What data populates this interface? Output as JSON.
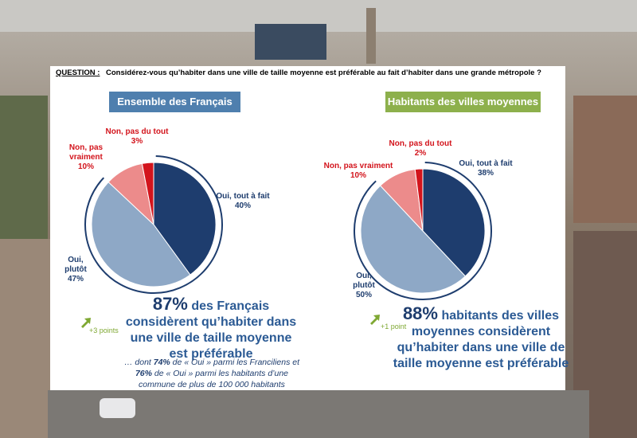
{
  "question": {
    "label": "QUESTION :",
    "text": "Considérez-vous qu’habiter dans une ville de taille moyenne est préférable au fait d’habiter dans une grande métropole ?"
  },
  "chart_data": [
    {
      "type": "pie",
      "title": "Ensemble des Français",
      "title_color": "#4f7fae",
      "categories": [
        "Oui, tout à fait",
        "Oui, plutôt",
        "Non, pas vraiment",
        "Non, pas du tout"
      ],
      "values": [
        40,
        47,
        10,
        3
      ],
      "value_labels": [
        "40%",
        "47%",
        "10%",
        "3%"
      ],
      "colors": [
        "#1e3d6e",
        "#8ea8c6",
        "#ec8b8b",
        "#d3141c"
      ],
      "highlight": "87%",
      "statement": "des Français considèrent qu’habiter dans une ville de taille moyenne est préférable",
      "delta": "+3 points",
      "footnote": [
        "… dont ",
        "74%",
        " de « Oui » parmi les Franciliens et ",
        "76%",
        " de « Oui » parmi les habitants d’une commune de plus de 100 000 habitants"
      ]
    },
    {
      "type": "pie",
      "title": "Habitants des villes moyennes",
      "title_color": "#8db04c",
      "categories": [
        "Oui, tout à fait",
        "Oui, plutôt",
        "Non, pas vraiment",
        "Non, pas du tout"
      ],
      "values": [
        38,
        50,
        10,
        2
      ],
      "value_labels": [
        "38%",
        "50%",
        "10%",
        "2%"
      ],
      "colors": [
        "#1e3d6e",
        "#8ea8c6",
        "#ec8b8b",
        "#d3141c"
      ],
      "highlight": "88%",
      "statement": "habitants des villes moyennes considèrent qu’habiter dans une ville de taille moyenne est préférable",
      "delta": "+1 point"
    }
  ]
}
